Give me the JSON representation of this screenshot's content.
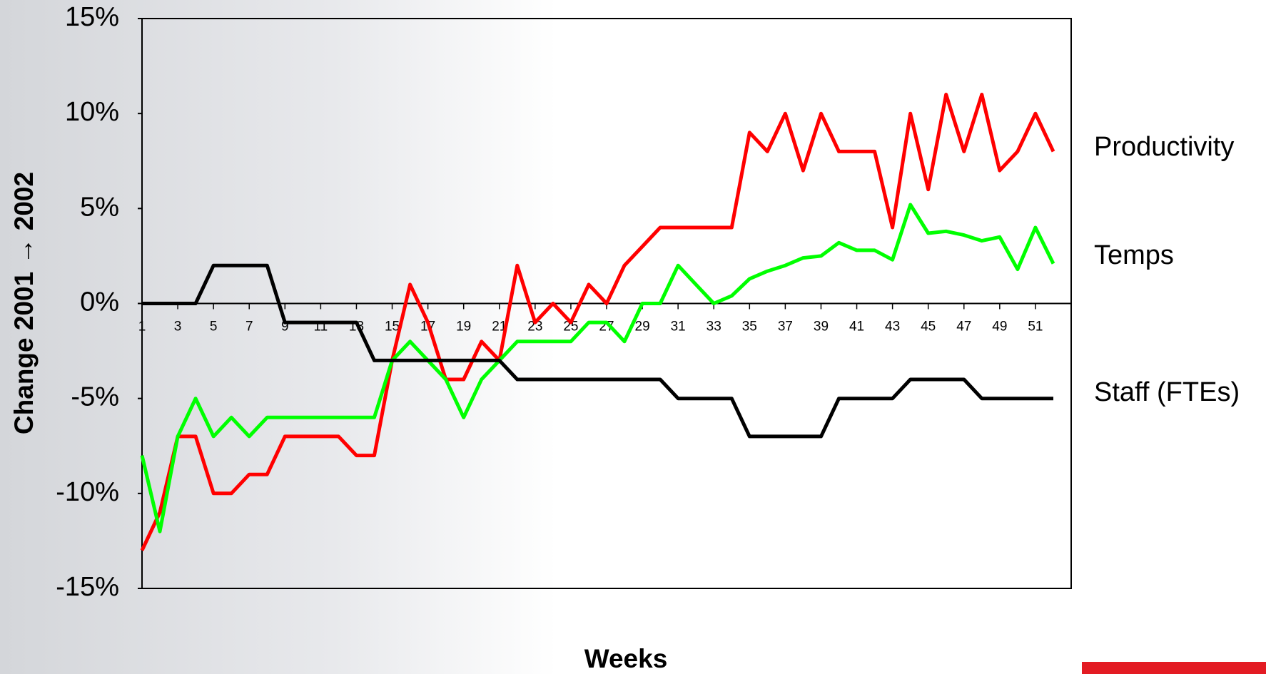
{
  "chart_data": {
    "type": "line",
    "x_label": "Weeks",
    "y_label": "Change 2001 → 2002",
    "x": [
      1,
      2,
      3,
      4,
      5,
      6,
      7,
      8,
      9,
      10,
      11,
      12,
      13,
      14,
      15,
      16,
      17,
      18,
      19,
      20,
      21,
      22,
      23,
      24,
      25,
      26,
      27,
      28,
      29,
      30,
      31,
      32,
      33,
      34,
      35,
      36,
      37,
      38,
      39,
      40,
      41,
      42,
      43,
      44,
      45,
      46,
      47,
      48,
      49,
      50,
      51,
      52
    ],
    "xlim": [
      1,
      53
    ],
    "xticks": [
      1,
      3,
      5,
      7,
      9,
      11,
      13,
      15,
      17,
      19,
      21,
      23,
      25,
      27,
      29,
      31,
      33,
      35,
      37,
      39,
      41,
      43,
      45,
      47,
      49,
      51
    ],
    "ylim": [
      -15,
      15
    ],
    "yticks": [
      {
        "value": -15,
        "label": "-15%"
      },
      {
        "value": -10,
        "label": "-10%"
      },
      {
        "value": -5,
        "label": "-5%"
      },
      {
        "value": 0,
        "label": "0%"
      },
      {
        "value": 5,
        "label": "5%"
      },
      {
        "value": 10,
        "label": "10%"
      },
      {
        "value": 15,
        "label": "15%"
      }
    ],
    "series": [
      {
        "name": "Productivity",
        "color": "#ff0000",
        "values": [
          -13,
          -11,
          -7,
          -7,
          -10,
          -10,
          -9,
          -9,
          -7,
          -7,
          -7,
          -7,
          -8,
          -8,
          -3,
          1,
          -1,
          -4,
          -4,
          -2,
          -3,
          2,
          -1,
          0,
          -1,
          1,
          0,
          2,
          3,
          4,
          4,
          4,
          4,
          4,
          9,
          8,
          10,
          7,
          10,
          8,
          8,
          8,
          4,
          10,
          6,
          11,
          8,
          11,
          7,
          8,
          10,
          8
        ]
      },
      {
        "name": "Temps",
        "color": "#00ff00",
        "values": [
          -8,
          -12,
          -7,
          -5,
          -7,
          -6,
          -7,
          -6,
          -6,
          -6,
          -6,
          -6,
          -6,
          -6,
          -3,
          -2,
          -3,
          -4,
          -6,
          -4,
          -3,
          -2,
          -2,
          -2,
          -2,
          -1,
          -1,
          -2,
          0,
          0,
          2,
          1,
          0,
          0.4,
          1.3,
          1.7,
          2,
          2.4,
          2.5,
          3.2,
          2.8,
          2.8,
          2.3,
          5.2,
          3.7,
          3.8,
          3.6,
          3.3,
          3.5,
          1.8,
          4,
          2.1
        ]
      },
      {
        "name": "Staff (FTEs)",
        "color": "#000000",
        "values": [
          0,
          0,
          0,
          0,
          2,
          2,
          2,
          2,
          -1,
          -1,
          -1,
          -1,
          -1,
          -3,
          -3,
          -3,
          -3,
          -3,
          -3,
          -3,
          -3,
          -4,
          -4,
          -4,
          -4,
          -4,
          -4,
          -4,
          -4,
          -4,
          -5,
          -5,
          -5,
          -5,
          -7,
          -7,
          -7,
          -7,
          -7,
          -5,
          -5,
          -5,
          -5,
          -4,
          -4,
          -4,
          -4,
          -5,
          -5,
          -5,
          -5,
          -5
        ]
      }
    ]
  }
}
